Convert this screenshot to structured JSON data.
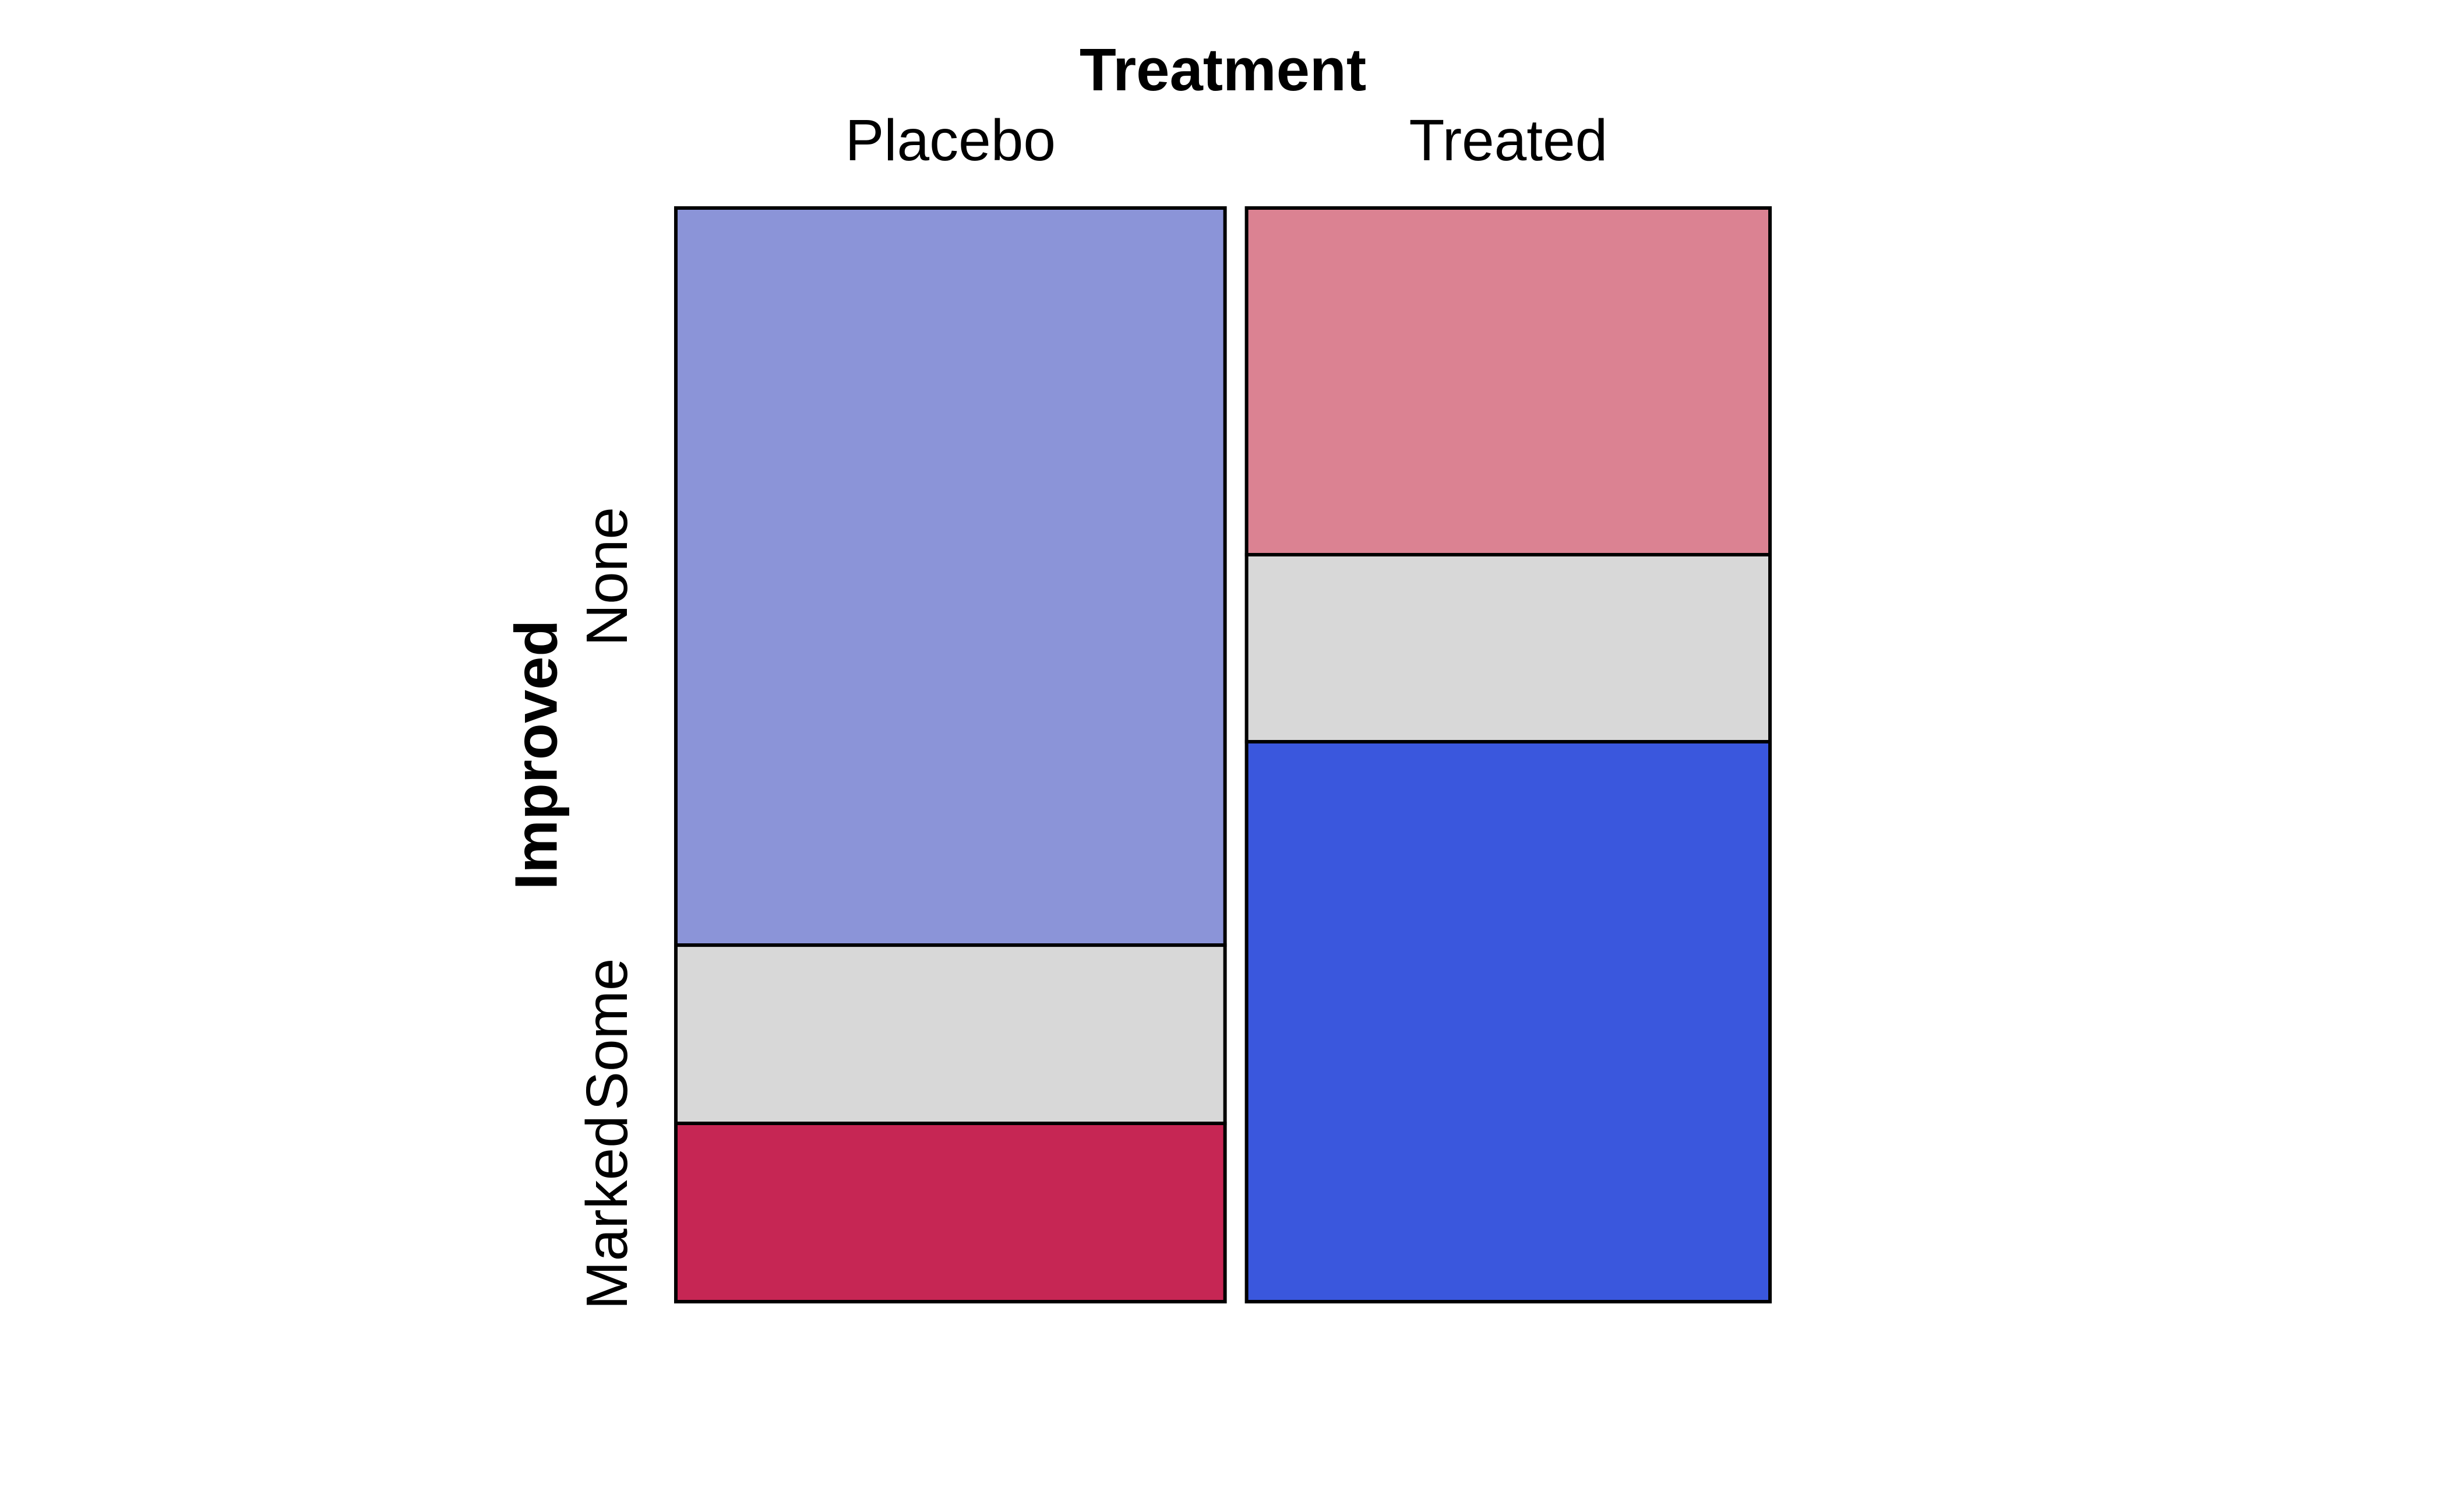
{
  "chart_data": {
    "type": "mosaic",
    "title": "Treatment",
    "ylabel": "Improved",
    "row_labels": [
      "None",
      "Some",
      "Marked"
    ],
    "tile_border_color": "#000000",
    "background_color": "#FFFFFF",
    "legend": "none",
    "grid": false,
    "columns": [
      {
        "label": "Placebo",
        "width_fraction": 0.512,
        "segments": [
          {
            "label": "None",
            "height_fraction": 0.674,
            "color": "#8B94D8"
          },
          {
            "label": "Some",
            "height_fraction": 0.163,
            "color": "#D8D8D8"
          },
          {
            "label": "Marked",
            "height_fraction": 0.163,
            "color": "#C62654"
          }
        ]
      },
      {
        "label": "Treated",
        "width_fraction": 0.488,
        "segments": [
          {
            "label": "None",
            "height_fraction": 0.317,
            "color": "#DB8292"
          },
          {
            "label": "Some",
            "height_fraction": 0.171,
            "color": "#D8D8D8"
          },
          {
            "label": "Marked",
            "height_fraction": 0.512,
            "color": "#3A57DD"
          }
        ]
      }
    ]
  }
}
